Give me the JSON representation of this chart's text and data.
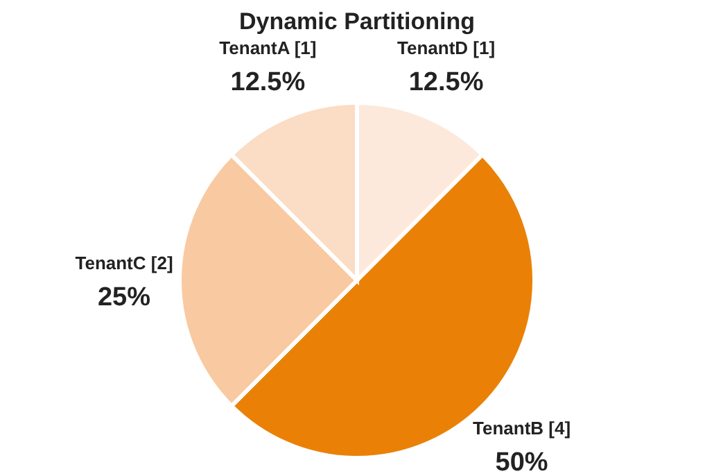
{
  "chart_data": {
    "type": "pie",
    "title": "Dynamic Partitioning",
    "categories": [
      "TenantD [1]",
      "TenantB [4]",
      "TenantC [2]",
      "TenantA [1]"
    ],
    "values": [
      12.5,
      50,
      25,
      12.5
    ],
    "value_labels": [
      "12.5%",
      "50%",
      "25%",
      "12.5%"
    ],
    "colors": [
      "#fde9dc",
      "#ea8106",
      "#f9c9a1",
      "#fbdcc4"
    ],
    "legend": false
  }
}
